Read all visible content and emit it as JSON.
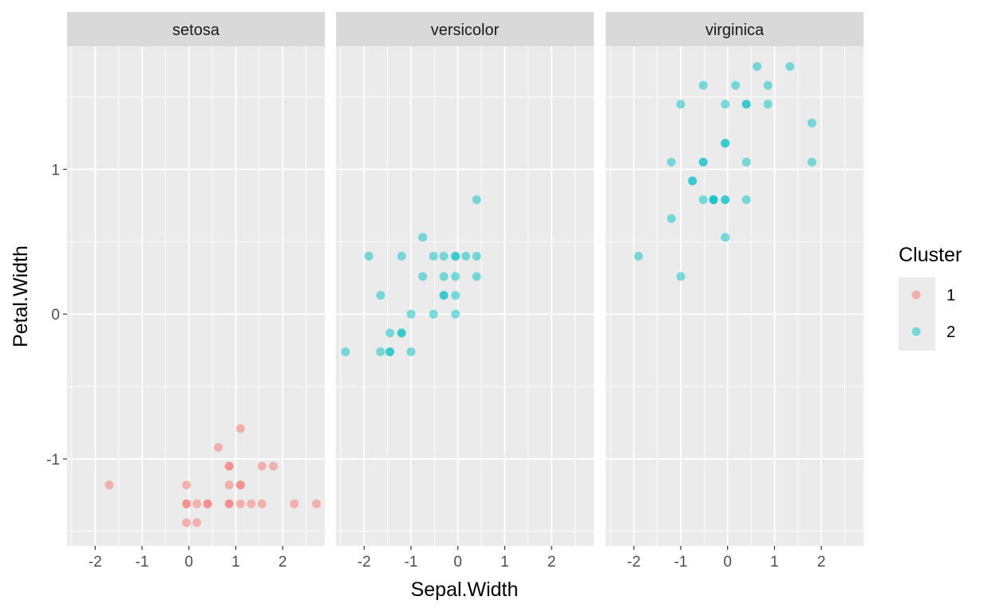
{
  "chart_data": {
    "type": "scatter",
    "facet_by": "Species",
    "facets": [
      "setosa",
      "versicolor",
      "virginica"
    ],
    "xlabel": "Sepal.Width",
    "ylabel": "Petal.Width",
    "xlim": [
      -2.6,
      2.9
    ],
    "ylim": [
      -1.6,
      1.85
    ],
    "x_ticks": [
      -2,
      -1,
      0,
      1,
      2
    ],
    "y_ticks": [
      -1,
      0,
      1
    ],
    "grid": true,
    "legend": {
      "title": "Cluster",
      "position": "right",
      "entries": [
        {
          "label": "1",
          "color": "#F8766D"
        },
        {
          "label": "2",
          "color": "#00BFC4"
        }
      ]
    },
    "point_alpha": 0.5,
    "series": [
      {
        "facet": "setosa",
        "cluster": "1",
        "points": [
          [
            -1.7,
            -1.18
          ],
          [
            -0.05,
            -1.18
          ],
          [
            -0.05,
            -1.31
          ],
          [
            -0.05,
            -1.31
          ],
          [
            -0.05,
            -1.44
          ],
          [
            0.17,
            -1.31
          ],
          [
            0.17,
            -1.44
          ],
          [
            0.4,
            -1.31
          ],
          [
            0.4,
            -1.31
          ],
          [
            0.63,
            -0.92
          ],
          [
            0.86,
            -1.05
          ],
          [
            0.86,
            -1.05
          ],
          [
            0.86,
            -1.18
          ],
          [
            0.86,
            -1.31
          ],
          [
            0.86,
            -1.31
          ],
          [
            1.1,
            -0.79
          ],
          [
            1.1,
            -1.18
          ],
          [
            1.1,
            -1.18
          ],
          [
            1.1,
            -1.31
          ],
          [
            1.33,
            -1.31
          ],
          [
            1.56,
            -1.05
          ],
          [
            1.56,
            -1.31
          ],
          [
            1.8,
            -1.05
          ],
          [
            2.25,
            -1.31
          ],
          [
            2.72,
            -1.31
          ]
        ]
      },
      {
        "facet": "versicolor",
        "cluster": "2",
        "points": [
          [
            -2.4,
            -0.26
          ],
          [
            -1.9,
            0.4
          ],
          [
            -1.65,
            0.13
          ],
          [
            -1.65,
            -0.26
          ],
          [
            -1.45,
            -0.13
          ],
          [
            -1.45,
            -0.26
          ],
          [
            -1.45,
            -0.26
          ],
          [
            -1.2,
            0.4
          ],
          [
            -1.2,
            -0.13
          ],
          [
            -1.2,
            -0.13
          ],
          [
            -1.0,
            0.0
          ],
          [
            -1.0,
            -0.26
          ],
          [
            -0.75,
            0.53
          ],
          [
            -0.75,
            0.26
          ],
          [
            -0.52,
            0.4
          ],
          [
            -0.52,
            0.0
          ],
          [
            -0.3,
            0.4
          ],
          [
            -0.3,
            0.26
          ],
          [
            -0.3,
            0.13
          ],
          [
            -0.3,
            0.13
          ],
          [
            -0.05,
            0.4
          ],
          [
            -0.05,
            0.4
          ],
          [
            -0.05,
            0.26
          ],
          [
            -0.05,
            0.13
          ],
          [
            -0.05,
            0.0
          ],
          [
            0.17,
            0.4
          ],
          [
            0.4,
            0.79
          ],
          [
            0.4,
            0.4
          ],
          [
            0.4,
            0.26
          ]
        ]
      },
      {
        "facet": "virginica",
        "cluster": "2",
        "points": [
          [
            -1.9,
            0.4
          ],
          [
            -1.2,
            1.05
          ],
          [
            -1.2,
            0.66
          ],
          [
            -1.0,
            1.45
          ],
          [
            -1.0,
            0.26
          ],
          [
            -0.75,
            0.92
          ],
          [
            -0.75,
            0.92
          ],
          [
            -0.52,
            1.58
          ],
          [
            -0.52,
            1.05
          ],
          [
            -0.52,
            1.05
          ],
          [
            -0.52,
            0.79
          ],
          [
            -0.3,
            0.79
          ],
          [
            -0.3,
            0.79
          ],
          [
            -0.3,
            0.79
          ],
          [
            -0.05,
            1.45
          ],
          [
            -0.05,
            1.18
          ],
          [
            -0.05,
            1.18
          ],
          [
            -0.05,
            0.79
          ],
          [
            -0.05,
            0.79
          ],
          [
            -0.05,
            0.53
          ],
          [
            0.17,
            1.58
          ],
          [
            0.4,
            1.45
          ],
          [
            0.4,
            1.45
          ],
          [
            0.4,
            1.05
          ],
          [
            0.4,
            0.79
          ],
          [
            0.63,
            1.71
          ],
          [
            0.86,
            1.58
          ],
          [
            0.86,
            1.45
          ],
          [
            1.33,
            1.71
          ],
          [
            1.8,
            1.32
          ],
          [
            1.8,
            1.05
          ]
        ]
      }
    ]
  }
}
